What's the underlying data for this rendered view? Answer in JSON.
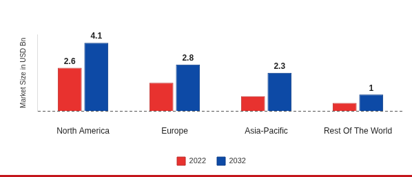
{
  "chart_data": {
    "type": "bar",
    "y_label": "Market Size in USD Bn",
    "categories": [
      "North America",
      "Europe",
      "Asia-Pacific",
      "Rest Of The World"
    ],
    "series": [
      {
        "name": "2022",
        "color": "#e8322f",
        "values": [
          2.6,
          1.7,
          0.9,
          0.5
        ],
        "value_labels": [
          "2.6",
          null,
          null,
          null
        ]
      },
      {
        "name": "2032",
        "color": "#0d4aa6",
        "values": [
          4.1,
          2.8,
          2.3,
          1.0
        ]
      }
    ],
    "ylim": [
      0,
      4.6
    ],
    "yticks": [
      0
    ],
    "grid": true,
    "legend": "bottom",
    "data_labels": true,
    "tick_labels": "x"
  }
}
